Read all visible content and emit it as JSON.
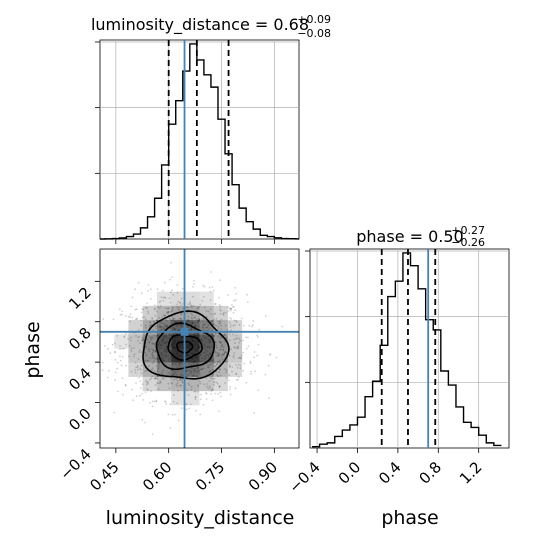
{
  "chart_data": {
    "type": "corner",
    "parameters": [
      "luminosity_distance",
      "phase"
    ],
    "truths": {
      "luminosity_distance": 0.645,
      "phase": 0.7
    },
    "colors": {
      "truth": "#4682b4",
      "hist": "#000000",
      "grid": "#b0b0b0",
      "scatter": "#000000"
    },
    "grid": true,
    "titles": {
      "luminosity_distance": {
        "label": "luminosity_distance = 0.68",
        "plus": "+0.09",
        "minus": "−0.08"
      },
      "phase": {
        "label": "phase = 0.50",
        "plus": "+0.27",
        "minus": "−0.26"
      }
    },
    "quantiles": {
      "luminosity_distance": [
        0.6,
        0.68,
        0.77
      ],
      "phase": [
        0.24,
        0.5,
        0.77
      ]
    },
    "marginals": {
      "luminosity_distance": {
        "xlim": [
          0.405,
          0.97
        ],
        "bin_edges": [
          0.4,
          0.42,
          0.44,
          0.46,
          0.48,
          0.5,
          0.52,
          0.54,
          0.56,
          0.58,
          0.6,
          0.62,
          0.64,
          0.66,
          0.68,
          0.7,
          0.72,
          0.74,
          0.76,
          0.78,
          0.8,
          0.82,
          0.84,
          0.86,
          0.88,
          0.9,
          0.92,
          0.94,
          0.96,
          0.98
        ],
        "counts": [
          0,
          0.1,
          0.3,
          0.8,
          2,
          4,
          9,
          18,
          33,
          60,
          93,
          112,
          136,
          158,
          145,
          133,
          123,
          97,
          69,
          44,
          25,
          14,
          8,
          3,
          2,
          1,
          0.3,
          0.2,
          0.1
        ]
      },
      "phase": {
        "xlim": [
          -0.47,
          1.5
        ],
        "bin_edges": [
          -0.45,
          -0.375,
          -0.3,
          -0.225,
          -0.15,
          -0.075,
          0.0,
          0.075,
          0.15,
          0.225,
          0.3,
          0.375,
          0.45,
          0.525,
          0.6,
          0.675,
          0.75,
          0.825,
          0.9,
          0.975,
          1.05,
          1.125,
          1.2,
          1.275,
          1.35,
          1.425
        ],
        "counts": [
          1,
          3,
          4,
          9,
          14,
          18,
          24,
          40,
          52,
          80,
          118,
          130,
          152,
          142,
          124,
          100,
          92,
          60,
          49,
          32,
          20,
          16,
          10,
          4,
          2
        ]
      }
    },
    "joint": {
      "xlim": [
        0.405,
        0.97
      ],
      "ylim": [
        -0.45,
        1.52
      ],
      "center": [
        0.645,
        0.55
      ],
      "sigma": [
        0.088,
        0.255
      ],
      "contours": [
        [
          0.022,
          0.055
        ],
        [
          0.048,
          0.12
        ],
        [
          0.082,
          0.22
        ],
        [
          0.12,
          0.33
        ]
      ]
    },
    "ticks": {
      "luminosity_distance": [
        "0.45",
        "0.60",
        "0.75",
        "0.90"
      ],
      "phase_y": [
        "−0.4",
        "0.0",
        "0.4",
        "0.8",
        "1.2"
      ],
      "phase_x": [
        "−0.4",
        "0.0",
        "0.4",
        "0.8",
        "1.2"
      ]
    },
    "ticks_values": {
      "luminosity_distance": [
        0.45,
        0.6,
        0.75,
        0.9
      ],
      "phase": [
        -0.4,
        0.0,
        0.4,
        0.8,
        1.2
      ]
    },
    "xlabel_left": "luminosity_distance",
    "xlabel_right": "phase",
    "ylabel": "phase"
  }
}
